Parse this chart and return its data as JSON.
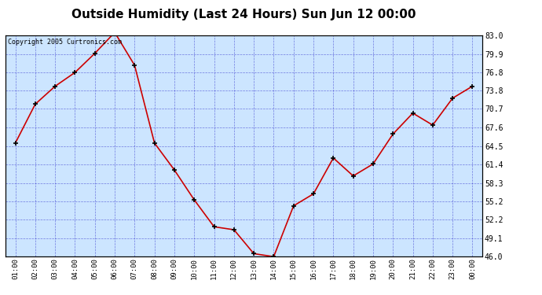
{
  "title": "Outside Humidity (Last 24 Hours) Sun Jun 12 00:00",
  "copyright": "Copyright 2005 Curtronics.com",
  "x_labels": [
    "01:00",
    "02:00",
    "03:00",
    "04:00",
    "05:00",
    "06:00",
    "07:00",
    "08:00",
    "09:00",
    "10:00",
    "11:00",
    "12:00",
    "13:00",
    "14:00",
    "15:00",
    "16:00",
    "17:00",
    "18:00",
    "19:00",
    "20:00",
    "21:00",
    "22:00",
    "23:00",
    "00:00"
  ],
  "x_values": [
    1,
    2,
    3,
    4,
    5,
    6,
    7,
    8,
    9,
    10,
    11,
    12,
    13,
    14,
    15,
    16,
    17,
    18,
    19,
    20,
    21,
    22,
    23,
    24
  ],
  "y_values": [
    65.0,
    71.5,
    74.5,
    76.8,
    80.0,
    83.5,
    78.0,
    65.0,
    60.5,
    55.5,
    51.0,
    50.5,
    46.5,
    46.0,
    54.5,
    56.5,
    62.5,
    59.5,
    61.5,
    66.5,
    70.0,
    68.0,
    72.5,
    74.5
  ],
  "y_ticks": [
    46.0,
    49.1,
    52.2,
    55.2,
    58.3,
    61.4,
    64.5,
    67.6,
    70.7,
    73.8,
    76.8,
    79.9,
    83.0
  ],
  "ylim": [
    46.0,
    83.0
  ],
  "line_color": "#cc0000",
  "marker_color": "#000000",
  "bg_color": "#cce5ff",
  "grid_color": "#3333cc",
  "title_fontsize": 11,
  "copyright_fontsize": 6
}
